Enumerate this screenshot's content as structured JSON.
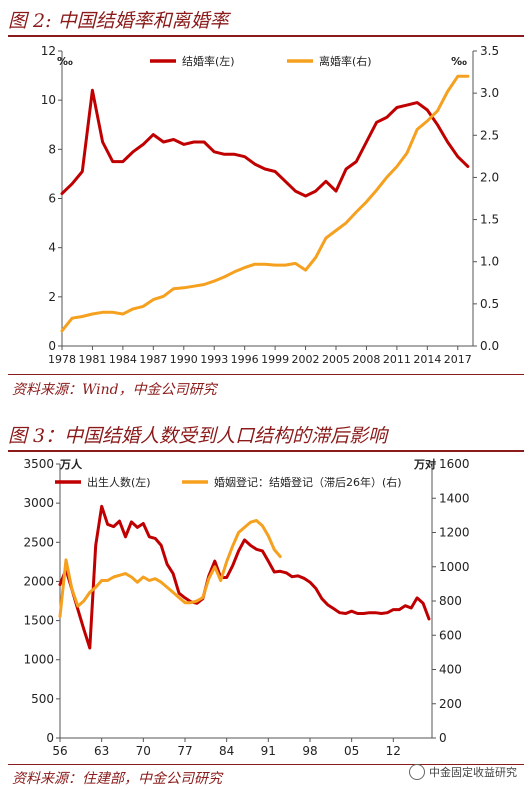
{
  "figure2": {
    "title": "图 2: 中国结婚率和离婚率",
    "source": "资料来源：Wind，中金公司研究"
  },
  "figure3": {
    "title": "图 3：中国结婚人数受到人口结构的滞后影响",
    "source": "资料来源：住建部，中金公司研究"
  },
  "watermark": {
    "text": "中金固定收益研究",
    "icon": "wechat-icon"
  },
  "chart_data": [
    {
      "type": "line",
      "left_unit": "‰",
      "right_unit": "‰",
      "ylim_left": [
        0,
        12
      ],
      "ylim_right": [
        0,
        3.5
      ],
      "yticks_left": [
        "0",
        "2",
        "4",
        "6",
        "8",
        "10",
        "12"
      ],
      "yticks_right": [
        "0.0",
        "0.5",
        "1.0",
        "1.5",
        "2.0",
        "2.5",
        "3.0",
        "3.5"
      ],
      "xlim": [
        1978,
        2018.5
      ],
      "xticks": [
        "1978",
        "1981",
        "1984",
        "1987",
        "1990",
        "1993",
        "1996",
        "1999",
        "2002",
        "2005",
        "2008",
        "2011",
        "2014",
        "2017"
      ],
      "grid": false,
      "legend_position": "top",
      "series": [
        {
          "name": "结婚率(左)",
          "axis": "left",
          "color": "#c00000",
          "x": [
            1978,
            1979,
            1980,
            1981,
            1982,
            1983,
            1984,
            1985,
            1986,
            1987,
            1988,
            1989,
            1990,
            1991,
            1992,
            1993,
            1994,
            1995,
            1996,
            1997,
            1998,
            1999,
            2000,
            2001,
            2002,
            2003,
            2004,
            2005,
            2006,
            2007,
            2008,
            2009,
            2010,
            2011,
            2012,
            2013,
            2014,
            2015,
            2016,
            2017,
            2018
          ],
          "values": [
            6.2,
            6.6,
            7.1,
            10.4,
            8.3,
            7.5,
            7.5,
            7.9,
            8.2,
            8.6,
            8.3,
            8.4,
            8.2,
            8.3,
            8.3,
            7.9,
            7.8,
            7.8,
            7.7,
            7.4,
            7.2,
            7.1,
            6.7,
            6.3,
            6.1,
            6.3,
            6.7,
            6.3,
            7.2,
            7.5,
            8.3,
            9.1,
            9.3,
            9.7,
            9.8,
            9.9,
            9.6,
            9.0,
            8.3,
            7.7,
            7.3
          ]
        },
        {
          "name": "离婚率(右)",
          "axis": "right",
          "color": "#f5a01e",
          "x": [
            1978,
            1979,
            1980,
            1981,
            1982,
            1983,
            1984,
            1985,
            1986,
            1987,
            1988,
            1989,
            1990,
            1991,
            1992,
            1993,
            1994,
            1995,
            1996,
            1997,
            1998,
            1999,
            2000,
            2001,
            2002,
            2003,
            2004,
            2005,
            2006,
            2007,
            2008,
            2009,
            2010,
            2011,
            2012,
            2013,
            2014,
            2015,
            2016,
            2017,
            2018
          ],
          "values": [
            0.18,
            0.33,
            0.35,
            0.38,
            0.4,
            0.4,
            0.38,
            0.44,
            0.47,
            0.55,
            0.59,
            0.68,
            0.69,
            0.71,
            0.73,
            0.77,
            0.82,
            0.88,
            0.93,
            0.97,
            0.97,
            0.96,
            0.96,
            0.98,
            0.9,
            1.05,
            1.28,
            1.37,
            1.46,
            1.59,
            1.71,
            1.85,
            2.0,
            2.13,
            2.29,
            2.57,
            2.67,
            2.79,
            3.02,
            3.2,
            3.2
          ]
        }
      ]
    },
    {
      "type": "line",
      "left_unit": "万人",
      "right_unit": "万对",
      "ylim_left": [
        0,
        3500
      ],
      "ylim_right": [
        0,
        1600
      ],
      "yticks_left": [
        "0",
        "500",
        "1000",
        "1500",
        "2000",
        "2500",
        "3000",
        "3500"
      ],
      "yticks_right": [
        "0",
        "200",
        "400",
        "600",
        "800",
        "1000",
        "1200",
        "1400",
        "1600"
      ],
      "xlim": [
        1956,
        2018.5
      ],
      "xticks": [
        "56",
        "63",
        "70",
        "77",
        "84",
        "91",
        "98",
        "05",
        "12"
      ],
      "grid": false,
      "legend_position": "top",
      "series": [
        {
          "name": "出生人数(左)",
          "axis": "left",
          "color": "#c00000",
          "x": [
            1956,
            1957,
            1958,
            1959,
            1960,
            1961,
            1962,
            1963,
            1964,
            1965,
            1966,
            1967,
            1968,
            1969,
            1970,
            1971,
            1972,
            1973,
            1974,
            1975,
            1976,
            1977,
            1978,
            1979,
            1980,
            1981,
            1982,
            1983,
            1984,
            1985,
            1986,
            1987,
            1988,
            1989,
            1990,
            1991,
            1992,
            1993,
            1994,
            1995,
            1996,
            1997,
            1998,
            1999,
            2000,
            2001,
            2002,
            2003,
            2004,
            2005,
            2006,
            2007,
            2008,
            2009,
            2010,
            2011,
            2012,
            2013,
            2014,
            2015,
            2016,
            2017,
            2018
          ],
          "values": [
            1960,
            2150,
            1900,
            1640,
            1390,
            1150,
            2460,
            2960,
            2730,
            2700,
            2770,
            2570,
            2760,
            2690,
            2740,
            2570,
            2550,
            2460,
            2220,
            2100,
            1850,
            1790,
            1740,
            1720,
            1780,
            2070,
            2260,
            2050,
            2050,
            2200,
            2390,
            2530,
            2460,
            2410,
            2390,
            2260,
            2120,
            2130,
            2110,
            2060,
            2070,
            2040,
            1990,
            1910,
            1780,
            1700,
            1650,
            1600,
            1590,
            1620,
            1590,
            1590,
            1600,
            1600,
            1590,
            1600,
            1640,
            1640,
            1690,
            1660,
            1790,
            1720,
            1520
          ]
        },
        {
          "name": "婚姻登记：结婚登记（滞后26年）(右)",
          "axis": "right",
          "color": "#f5a01e",
          "x": [
            1956,
            1957,
            1958,
            1959,
            1960,
            1961,
            1962,
            1963,
            1964,
            1965,
            1966,
            1967,
            1968,
            1969,
            1970,
            1971,
            1972,
            1973,
            1974,
            1975,
            1976,
            1977,
            1978,
            1979,
            1980,
            1981,
            1982,
            1983,
            1984,
            1985,
            1986,
            1987,
            1988,
            1989,
            1990,
            1991,
            1992,
            1993
          ],
          "values": [
            710,
            1040,
            870,
            770,
            800,
            850,
            880,
            920,
            920,
            940,
            950,
            960,
            940,
            910,
            940,
            920,
            930,
            910,
            880,
            850,
            820,
            790,
            790,
            800,
            820,
            930,
            1000,
            920,
            1030,
            1120,
            1200,
            1230,
            1260,
            1270,
            1240,
            1180,
            1100,
            1060
          ]
        }
      ]
    }
  ]
}
